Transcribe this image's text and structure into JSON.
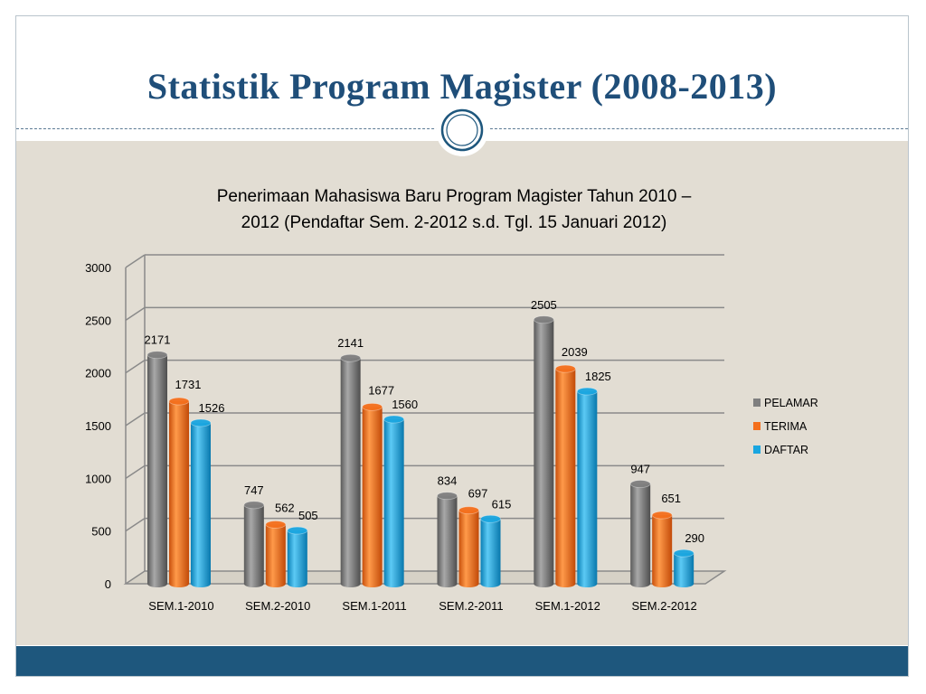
{
  "slide": {
    "title": "Statistik Program Magister (2008-2013)"
  },
  "colors": {
    "title": "#1f4e79",
    "bottom_bar": "#1e577d",
    "content_bg": "#e2ddd3",
    "pelamar": "#7f7f7f",
    "terima": "#f46f1c",
    "daftar": "#1aa6e0"
  },
  "chart_data": {
    "type": "bar",
    "title_lines": [
      "Penerimaan Mahasiswa Baru Program Magister Tahun 2010 –",
      "2012 (Pendaftar Sem. 2-2012 s.d. Tgl. 15 Januari 2012)"
    ],
    "categories": [
      "SEM.1-2010",
      "SEM.2-2010",
      "SEM.1-2011",
      "SEM.2-2011",
      "SEM.1-2012",
      "SEM.2-2012"
    ],
    "series": [
      {
        "name": "PELAMAR",
        "values": [
          2171,
          747,
          2141,
          834,
          2505,
          947
        ]
      },
      {
        "name": "TERIMA",
        "values": [
          1731,
          562,
          1677,
          697,
          2039,
          651
        ]
      },
      {
        "name": "DAFTAR",
        "values": [
          1526,
          505,
          1560,
          615,
          1825,
          290
        ]
      }
    ],
    "ylim": [
      0,
      3000
    ],
    "yticks": [
      0,
      500,
      1000,
      1500,
      2000,
      2500,
      3000
    ],
    "grid": true,
    "legend": "right",
    "style": "3d-cylinder"
  }
}
